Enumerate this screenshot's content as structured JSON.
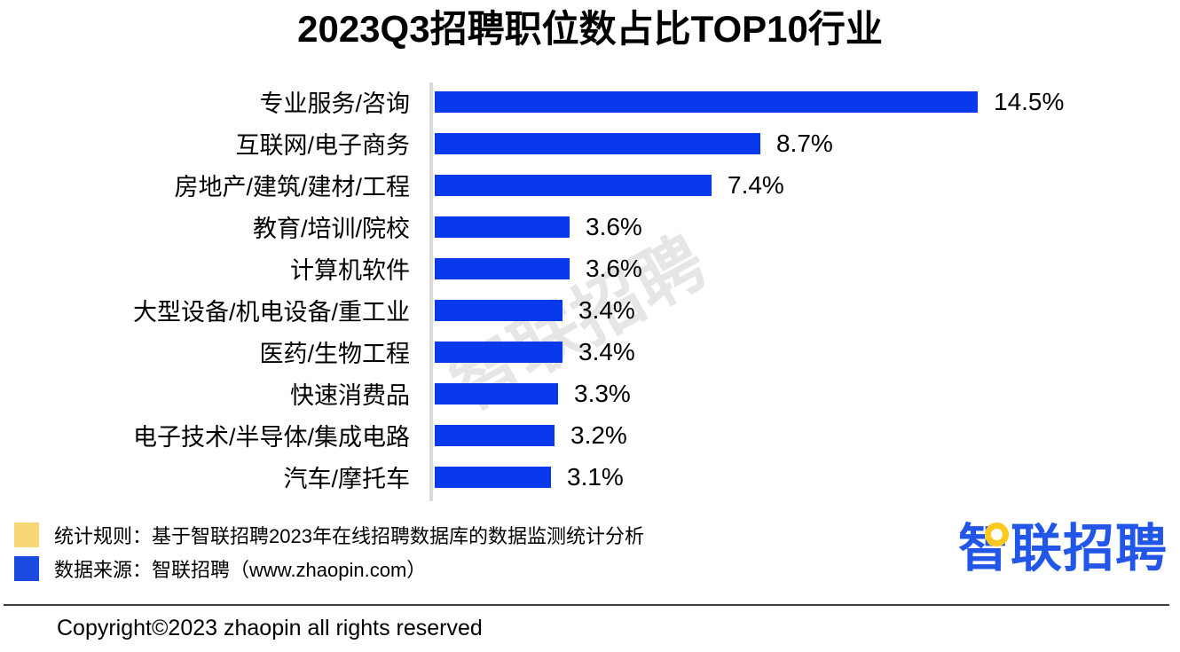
{
  "title": "2023Q3招聘职位数占比TOP10行业",
  "watermark": "智联招聘",
  "chart_data": {
    "type": "bar",
    "orientation": "horizontal",
    "title": "2023Q3招聘职位数占比TOP10行业",
    "categories": [
      "专业服务/咨询",
      "互联网/电子商务",
      "房地产/建筑/建材/工程",
      "教育/培训/院校",
      "计算机软件",
      "大型设备/机电设备/重工业",
      "医药/生物工程",
      "快速消费品",
      "电子技术/半导体/集成电路",
      "汽车/摩托车"
    ],
    "values": [
      14.5,
      8.7,
      7.4,
      3.6,
      3.6,
      3.4,
      3.4,
      3.3,
      3.2,
      3.1
    ],
    "value_labels": [
      "14.5%",
      "8.7%",
      "7.4%",
      "3.6%",
      "3.6%",
      "3.4%",
      "3.4%",
      "3.3%",
      "3.2%",
      "3.1%"
    ],
    "xlabel": "",
    "ylabel": "",
    "xlim": [
      0,
      14.5
    ],
    "grid": false,
    "legend_position": "none",
    "data_labels": true
  },
  "colors": {
    "bar_blue": "#0839ec",
    "axis_gray": "#d9d9d9",
    "watermark_gray": "#d2d2d2",
    "legend_yellow": "#f8d774",
    "legend_blue": "#1c49df",
    "logo_blue": "#2256e8",
    "logo_yellow": "#ffc81e"
  },
  "legend": [
    {
      "swatch": "legend_yellow",
      "label": "统计规则：基于智联招聘2023年在线招聘数据库的数据监测统计分析"
    },
    {
      "swatch": "legend_blue",
      "label": "数据来源：智联招聘（www.zhaopin.com）"
    }
  ],
  "logo": {
    "text": "智联招聘"
  },
  "copyright": "Copyright©2023 zhaopin all rights reserved"
}
